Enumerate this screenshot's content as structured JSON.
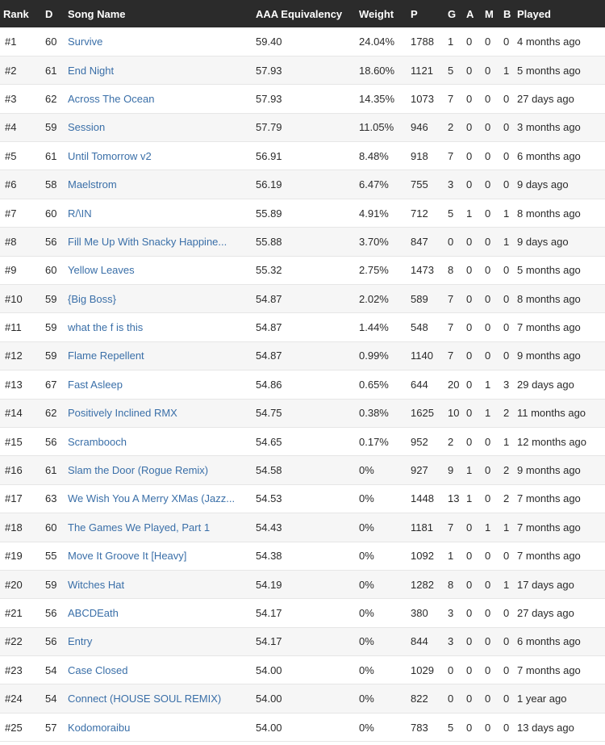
{
  "columns": {
    "rank": "Rank",
    "d": "D",
    "song": "Song Name",
    "aaa": "AAA Equivalency",
    "weight": "Weight",
    "p": "P",
    "g": "G",
    "a": "A",
    "m": "M",
    "b": "B",
    "played": "Played"
  },
  "rows": [
    {
      "rank": "#1",
      "d": "60",
      "song": "Survive",
      "aaa": "59.40",
      "weight": "24.04%",
      "p": "1788",
      "g": "1",
      "a": "0",
      "m": "0",
      "b": "0",
      "played": "4 months ago"
    },
    {
      "rank": "#2",
      "d": "61",
      "song": "End Night",
      "aaa": "57.93",
      "weight": "18.60%",
      "p": "1121",
      "g": "5",
      "a": "0",
      "m": "0",
      "b": "1",
      "played": "5 months ago"
    },
    {
      "rank": "#3",
      "d": "62",
      "song": "Across The Ocean",
      "aaa": "57.93",
      "weight": "14.35%",
      "p": "1073",
      "g": "7",
      "a": "0",
      "m": "0",
      "b": "0",
      "played": "27 days ago"
    },
    {
      "rank": "#4",
      "d": "59",
      "song": "Session",
      "aaa": "57.79",
      "weight": "11.05%",
      "p": "946",
      "g": "2",
      "a": "0",
      "m": "0",
      "b": "0",
      "played": "3 months ago"
    },
    {
      "rank": "#5",
      "d": "61",
      "song": "Until Tomorrow v2",
      "aaa": "56.91",
      "weight": "8.48%",
      "p": "918",
      "g": "7",
      "a": "0",
      "m": "0",
      "b": "0",
      "played": "6 months ago"
    },
    {
      "rank": "#6",
      "d": "58",
      "song": "Maelstrom",
      "aaa": "56.19",
      "weight": "6.47%",
      "p": "755",
      "g": "3",
      "a": "0",
      "m": "0",
      "b": "0",
      "played": "9 days ago"
    },
    {
      "rank": "#7",
      "d": "60",
      "song": "R/\\IN",
      "aaa": "55.89",
      "weight": "4.91%",
      "p": "712",
      "g": "5",
      "a": "1",
      "m": "0",
      "b": "1",
      "played": "8 months ago"
    },
    {
      "rank": "#8",
      "d": "56",
      "song": "Fill Me Up With Snacky Happine...",
      "aaa": "55.88",
      "weight": "3.70%",
      "p": "847",
      "g": "0",
      "a": "0",
      "m": "0",
      "b": "1",
      "played": "9 days ago"
    },
    {
      "rank": "#9",
      "d": "60",
      "song": "Yellow Leaves",
      "aaa": "55.32",
      "weight": "2.75%",
      "p": "1473",
      "g": "8",
      "a": "0",
      "m": "0",
      "b": "0",
      "played": "5 months ago"
    },
    {
      "rank": "#10",
      "d": "59",
      "song": "{Big Boss}",
      "aaa": "54.87",
      "weight": "2.02%",
      "p": "589",
      "g": "7",
      "a": "0",
      "m": "0",
      "b": "0",
      "played": "8 months ago"
    },
    {
      "rank": "#11",
      "d": "59",
      "song": "what the f is this",
      "aaa": "54.87",
      "weight": "1.44%",
      "p": "548",
      "g": "7",
      "a": "0",
      "m": "0",
      "b": "0",
      "played": "7 months ago"
    },
    {
      "rank": "#12",
      "d": "59",
      "song": "Flame Repellent",
      "aaa": "54.87",
      "weight": "0.99%",
      "p": "1140",
      "g": "7",
      "a": "0",
      "m": "0",
      "b": "0",
      "played": "9 months ago"
    },
    {
      "rank": "#13",
      "d": "67",
      "song": "Fast Asleep",
      "aaa": "54.86",
      "weight": "0.65%",
      "p": "644",
      "g": "20",
      "a": "0",
      "m": "1",
      "b": "3",
      "played": "29 days ago"
    },
    {
      "rank": "#14",
      "d": "62",
      "song": "Positively Inclined RMX",
      "aaa": "54.75",
      "weight": "0.38%",
      "p": "1625",
      "g": "10",
      "a": "0",
      "m": "1",
      "b": "2",
      "played": "11 months ago"
    },
    {
      "rank": "#15",
      "d": "56",
      "song": "Scrambooch",
      "aaa": "54.65",
      "weight": "0.17%",
      "p": "952",
      "g": "2",
      "a": "0",
      "m": "0",
      "b": "1",
      "played": "12 months ago"
    },
    {
      "rank": "#16",
      "d": "61",
      "song": "Slam the Door (Rogue Remix)",
      "aaa": "54.58",
      "weight": "0%",
      "p": "927",
      "g": "9",
      "a": "1",
      "m": "0",
      "b": "2",
      "played": "9 months ago"
    },
    {
      "rank": "#17",
      "d": "63",
      "song": "We Wish You A Merry XMas (Jazz...",
      "aaa": "54.53",
      "weight": "0%",
      "p": "1448",
      "g": "13",
      "a": "1",
      "m": "0",
      "b": "2",
      "played": "7 months ago"
    },
    {
      "rank": "#18",
      "d": "60",
      "song": "The Games We Played, Part 1",
      "aaa": "54.43",
      "weight": "0%",
      "p": "1181",
      "g": "7",
      "a": "0",
      "m": "1",
      "b": "1",
      "played": "7 months ago"
    },
    {
      "rank": "#19",
      "d": "55",
      "song": "Move It Groove It [Heavy]",
      "aaa": "54.38",
      "weight": "0%",
      "p": "1092",
      "g": "1",
      "a": "0",
      "m": "0",
      "b": "0",
      "played": "7 months ago"
    },
    {
      "rank": "#20",
      "d": "59",
      "song": "Witches Hat",
      "aaa": "54.19",
      "weight": "0%",
      "p": "1282",
      "g": "8",
      "a": "0",
      "m": "0",
      "b": "1",
      "played": "17 days ago"
    },
    {
      "rank": "#21",
      "d": "56",
      "song": "ABCDEath",
      "aaa": "54.17",
      "weight": "0%",
      "p": "380",
      "g": "3",
      "a": "0",
      "m": "0",
      "b": "0",
      "played": "27 days ago"
    },
    {
      "rank": "#22",
      "d": "56",
      "song": "Entry",
      "aaa": "54.17",
      "weight": "0%",
      "p": "844",
      "g": "3",
      "a": "0",
      "m": "0",
      "b": "0",
      "played": "6 months ago"
    },
    {
      "rank": "#23",
      "d": "54",
      "song": "Case Closed",
      "aaa": "54.00",
      "weight": "0%",
      "p": "1029",
      "g": "0",
      "a": "0",
      "m": "0",
      "b": "0",
      "played": "7 months ago"
    },
    {
      "rank": "#24",
      "d": "54",
      "song": "Connect (HOUSE SOUL REMIX)",
      "aaa": "54.00",
      "weight": "0%",
      "p": "822",
      "g": "0",
      "a": "0",
      "m": "0",
      "b": "0",
      "played": "1 year ago"
    },
    {
      "rank": "#25",
      "d": "57",
      "song": "Kodomoraibu",
      "aaa": "54.00",
      "weight": "0%",
      "p": "783",
      "g": "5",
      "a": "0",
      "m": "0",
      "b": "0",
      "played": "13 days ago"
    }
  ],
  "colors": {
    "header_bg": "#2b2b2b",
    "header_text": "#ffffff",
    "link": "#3a6fa8",
    "row_alt": "#f6f6f6"
  }
}
